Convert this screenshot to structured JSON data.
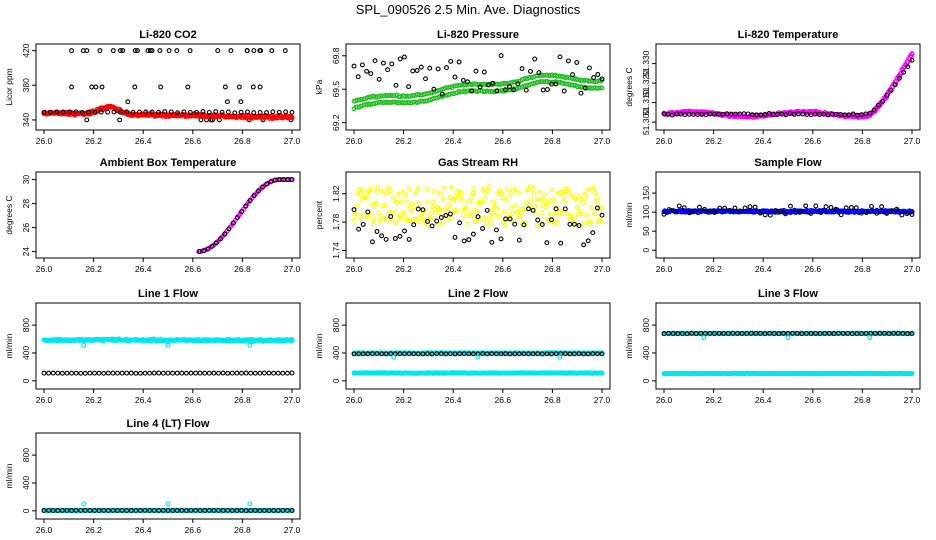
{
  "figure": {
    "title": "SPL_090526  2.5 Min. Ave. Diagnostics"
  },
  "chart_data": [
    {
      "id": "li820-co2",
      "type": "scatter",
      "title": "Li-820 CO2",
      "ylabel": "Licor ppm",
      "xlim": [
        26.0,
        27.0
      ],
      "ylim": [
        333,
        423
      ],
      "x_ticks": [
        "26.0",
        "26.2",
        "26.4",
        "26.6",
        "26.8",
        "27.0"
      ],
      "y_ticks": [
        {
          "v": 340,
          "label": "340"
        },
        {
          "v": 380,
          "label": "380"
        },
        {
          "v": 420,
          "label": "420"
        }
      ],
      "series": [
        {
          "color": "#000000",
          "generator": "scatter_set",
          "params": {
            "min_y": 340,
            "values": [
              340,
              361,
              378,
              420
            ],
            "n": [
              10,
              3,
              11,
              25
            ]
          }
        },
        {
          "color": "#ff0000",
          "generator": "band",
          "params": {
            "y_start": 348,
            "y_peak": 354,
            "y_end": 343,
            "noise": 2.5
          }
        },
        {
          "color": "#000000",
          "generator": "line_pts",
          "params": {
            "y": 349,
            "n": 40,
            "noise": 1.2
          }
        }
      ]
    },
    {
      "id": "li820-pressure",
      "type": "scatter",
      "title": "Li-820 Pressure",
      "ylabel": "kPa",
      "xlim": [
        26.0,
        27.0
      ],
      "ylim": [
        69.17,
        69.87
      ],
      "x_ticks": [
        "26.0",
        "26.2",
        "26.4",
        "26.6",
        "26.8",
        "27.0"
      ],
      "y_ticks": [
        {
          "v": 69.2,
          "label": "69.2"
        },
        {
          "v": 69.5,
          "label": "69.5"
        },
        {
          "v": 69.8,
          "label": "69.8"
        }
      ],
      "series": [
        {
          "color": "#22bb22",
          "generator": "band_trend",
          "params": {
            "y0": 69.33,
            "y1": 69.55,
            "spread": 0.06
          }
        },
        {
          "color": "#000000",
          "generator": "cloud",
          "params": {
            "y_lo": 69.45,
            "y_hi": 69.84,
            "n": 60
          }
        }
      ]
    },
    {
      "id": "li820-temperature",
      "type": "scatter",
      "title": "Li-820 Temperature",
      "ylabel": "degrees C",
      "xlim": [
        26.0,
        27.0
      ],
      "ylim": [
        51.298,
        51.338
      ],
      "x_ticks": [
        "26.0",
        "26.2",
        "26.4",
        "26.6",
        "26.8",
        "27.0"
      ],
      "y_ticks": [
        {
          "v": 51.3,
          "label": "51.300"
        },
        {
          "v": 51.31,
          "label": "51.310"
        },
        {
          "v": 51.32,
          "label": "51.320"
        },
        {
          "v": 51.33,
          "label": "51.330"
        }
      ],
      "series": [
        {
          "color": "#ff00ff",
          "generator": "rise",
          "params": {
            "base": 51.304,
            "end": 51.334,
            "knee": 0.82
          }
        },
        {
          "color": "#000000",
          "generator": "rise_sparse",
          "params": {
            "base": 51.304,
            "end": 51.332,
            "knee": 0.82
          }
        }
      ]
    },
    {
      "id": "ambient-box-temperature",
      "type": "scatter",
      "title": "Ambient Box Temperature",
      "ylabel": "degrees C",
      "xlim": [
        26.0,
        27.0
      ],
      "ylim": [
        23.8,
        30.3
      ],
      "x_ticks": [
        "26.0",
        "26.2",
        "26.4",
        "26.6",
        "26.8",
        "27.0"
      ],
      "y_ticks": [
        {
          "v": 24,
          "label": "24"
        },
        {
          "v": 26,
          "label": "26"
        },
        {
          "v": 28,
          "label": "28"
        },
        {
          "v": 30,
          "label": "30"
        }
      ],
      "series": [
        {
          "color": "#ff00ff",
          "generator": "curve_temp",
          "params": {}
        },
        {
          "color": "#000000",
          "generator": "curve_temp_sparse",
          "params": {}
        }
      ]
    },
    {
      "id": "gas-stream-rh",
      "type": "scatter",
      "title": "Gas Stream RH",
      "ylabel": "percent",
      "xlim": [
        26.0,
        27.0
      ],
      "ylim": [
        1.735,
        1.845
      ],
      "x_ticks": [
        "26.0",
        "26.2",
        "26.4",
        "26.6",
        "26.8",
        "27.0"
      ],
      "y_ticks": [
        {
          "v": 1.74,
          "label": "1.74"
        },
        {
          "v": 1.78,
          "label": "1.78"
        },
        {
          "v": 1.82,
          "label": "1.82"
        }
      ],
      "series": [
        {
          "color": "#ffff00",
          "generator": "cloud",
          "params": {
            "y_lo": 1.775,
            "y_hi": 1.83,
            "n": 260
          }
        },
        {
          "color": "#000000",
          "generator": "cloud",
          "params": {
            "y_lo": 1.745,
            "y_hi": 1.8,
            "n": 55
          }
        }
      ]
    },
    {
      "id": "sample-flow",
      "type": "scatter",
      "title": "Sample Flow",
      "ylabel": "ml/min",
      "xlim": [
        26.0,
        27.0
      ],
      "ylim": [
        -10,
        195
      ],
      "x_ticks": [
        "26.0",
        "26.2",
        "26.4",
        "26.6",
        "26.8",
        "27.0"
      ],
      "y_ticks": [
        {
          "v": 0,
          "label": "0"
        },
        {
          "v": 50,
          "label": "50"
        },
        {
          "v": 100,
          "label": "100"
        },
        {
          "v": 150,
          "label": "150"
        }
      ],
      "series": [
        {
          "color": "#0000ff",
          "generator": "band",
          "params": {
            "y_start": 102,
            "y_peak": 102,
            "y_end": 102,
            "noise": 4
          }
        },
        {
          "color": "#000000",
          "generator": "cloud",
          "params": {
            "y_lo": 92,
            "y_hi": 118,
            "n": 50
          }
        }
      ]
    },
    {
      "id": "line-1-flow",
      "type": "scatter",
      "title": "Line 1 Flow",
      "ylabel": "ml/min",
      "xlim": [
        26.0,
        27.0
      ],
      "ylim": [
        -60,
        1060
      ],
      "x_ticks": [
        "26.0",
        "26.2",
        "26.4",
        "26.6",
        "26.8",
        "27.0"
      ],
      "y_ticks": [
        {
          "v": 0,
          "label": "0"
        },
        {
          "v": 400,
          "label": "400"
        },
        {
          "v": 800,
          "label": "800"
        }
      ],
      "series": [
        {
          "color": "#00e5ee",
          "generator": "band",
          "params": {
            "y_start": 585,
            "y_peak": 590,
            "y_end": 580,
            "noise": 22
          }
        },
        {
          "color": "#000000",
          "generator": "line_pts",
          "params": {
            "y": 110,
            "n": 55,
            "noise": 3
          }
        },
        {
          "color": "#00e5ee",
          "generator": "dips",
          "params": {
            "y": 510,
            "xs": [
              0.16,
              0.5,
              0.83
            ]
          }
        }
      ]
    },
    {
      "id": "line-2-flow",
      "type": "scatter",
      "title": "Line 2 Flow",
      "ylabel": "ml/min",
      "xlim": [
        26.0,
        27.0
      ],
      "ylim": [
        -60,
        1060
      ],
      "x_ticks": [
        "26.0",
        "26.2",
        "26.4",
        "26.6",
        "26.8",
        "27.0"
      ],
      "y_ticks": [
        {
          "v": 0,
          "label": "0"
        },
        {
          "v": 400,
          "label": "400"
        },
        {
          "v": 800,
          "label": "800"
        }
      ],
      "series": [
        {
          "color": "#00e5ee",
          "generator": "band",
          "params": {
            "y_start": 398,
            "y_peak": 398,
            "y_end": 398,
            "noise": 8
          }
        },
        {
          "color": "#00e5ee",
          "generator": "band",
          "params": {
            "y_start": 112,
            "y_peak": 112,
            "y_end": 112,
            "noise": 8
          }
        },
        {
          "color": "#000000",
          "generator": "line_pts",
          "params": {
            "y": 388,
            "n": 55,
            "noise": 4
          }
        },
        {
          "color": "#00e5ee",
          "generator": "dips",
          "params": {
            "y": 340,
            "xs": [
              0.16,
              0.5,
              0.83
            ]
          }
        }
      ]
    },
    {
      "id": "line-3-flow",
      "type": "scatter",
      "title": "Line 3 Flow",
      "ylabel": "ml/min",
      "xlim": [
        26.0,
        27.0
      ],
      "ylim": [
        -60,
        1060
      ],
      "x_ticks": [
        "26.0",
        "26.2",
        "26.4",
        "26.6",
        "26.8",
        "27.0"
      ],
      "y_ticks": [
        {
          "v": 0,
          "label": "0"
        },
        {
          "v": 400,
          "label": "400"
        },
        {
          "v": 800,
          "label": "800"
        }
      ],
      "series": [
        {
          "color": "#00e5ee",
          "generator": "band",
          "params": {
            "y_start": 680,
            "y_peak": 680,
            "y_end": 680,
            "noise": 8
          }
        },
        {
          "color": "#00e5ee",
          "generator": "band",
          "params": {
            "y_start": 105,
            "y_peak": 105,
            "y_end": 105,
            "noise": 8
          }
        },
        {
          "color": "#000000",
          "generator": "line_pts",
          "params": {
            "y": 680,
            "n": 55,
            "noise": 4
          }
        },
        {
          "color": "#00e5ee",
          "generator": "dips",
          "params": {
            "y": 620,
            "xs": [
              0.16,
              0.5,
              0.83
            ]
          }
        }
      ]
    },
    {
      "id": "line-4-lt-flow",
      "type": "scatter",
      "title": "Line 4 (LT) Flow",
      "ylabel": "ml/min",
      "xlim": [
        26.0,
        27.0
      ],
      "ylim": [
        -60,
        1060
      ],
      "x_ticks": [
        "26.0",
        "26.2",
        "26.4",
        "26.6",
        "26.8",
        "27.0"
      ],
      "y_ticks": [
        {
          "v": 0,
          "label": "0"
        },
        {
          "v": 400,
          "label": "400"
        },
        {
          "v": 800,
          "label": "800"
        }
      ],
      "series": [
        {
          "color": "#00e5ee",
          "generator": "band",
          "params": {
            "y_start": 5,
            "y_peak": 5,
            "y_end": 5,
            "noise": 4
          }
        },
        {
          "color": "#000000",
          "generator": "line_pts",
          "params": {
            "y": 5,
            "n": 55,
            "noise": 2
          }
        },
        {
          "color": "#00e5ee",
          "generator": "dips",
          "params": {
            "y": 100,
            "xs": [
              0.16,
              0.5,
              0.83
            ]
          }
        }
      ]
    }
  ]
}
